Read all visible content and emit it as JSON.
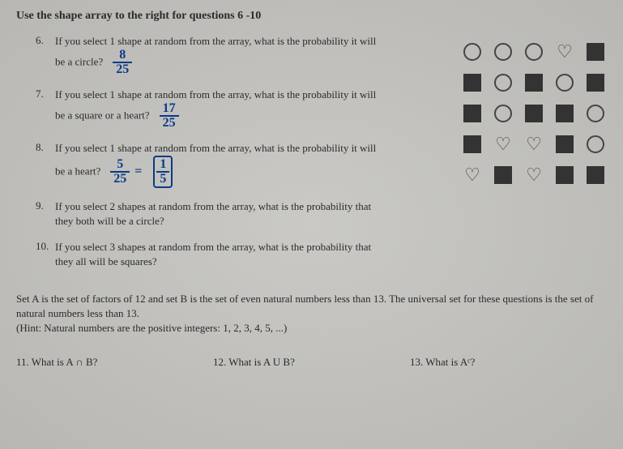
{
  "header": "Use the shape array to the right for questions 6 -10",
  "questions": {
    "q6": {
      "num": "6.",
      "text": "If you select 1 shape at random from the array, what is the probability it will be a circle?",
      "ans_num": "8",
      "ans_den": "25"
    },
    "q7": {
      "num": "7.",
      "text": "If you select 1 shape at random from the array, what is the probability it will be a square or a heart?",
      "ans_num": "17",
      "ans_den": "25"
    },
    "q8": {
      "num": "8.",
      "text": "If you select 1 shape at random from the array, what is the probability it will be a heart?",
      "ans_num": "5",
      "ans_den": "25",
      "ans2_num": "1",
      "ans2_den": "5",
      "eq": "="
    },
    "q9": {
      "num": "9.",
      "text": "If you select 2 shapes at random from the array, what is the probability that they both will be a circle?"
    },
    "q10": {
      "num": "10.",
      "text": "If you select 3 shapes at random from the array, what is the probability that they all will be squares?"
    }
  },
  "set_section": {
    "line1": "Set A is the set of factors of 12 and set B is the set of even natural numbers less than 13. The universal set for these questions is the set of natural numbers less than 13.",
    "hint": "(Hint: Natural numbers are the positive integers: 1, 2, 3, 4, 5, ...)"
  },
  "bottom_questions": {
    "q11": "11. What is A ∩ B?",
    "q12": "12. What is A U B?",
    "q13": "13. What is Aᶜ?"
  },
  "shapes": [
    [
      "circle",
      "circle",
      "circle",
      "heart",
      "square"
    ],
    [
      "square",
      "circle",
      "square",
      "circle",
      "square"
    ],
    [
      "square",
      "circle",
      "square",
      "square",
      "circle"
    ],
    [
      "square",
      "heart",
      "heart",
      "square",
      "circle"
    ],
    [
      "heart",
      "square",
      "heart",
      "square",
      "square"
    ]
  ],
  "colors": {
    "handwrite": "#0a3a8a",
    "text": "#2a2a2a",
    "shape_dark": "#333333",
    "shape_outline": "#444444",
    "background": "#c4c4c0"
  }
}
